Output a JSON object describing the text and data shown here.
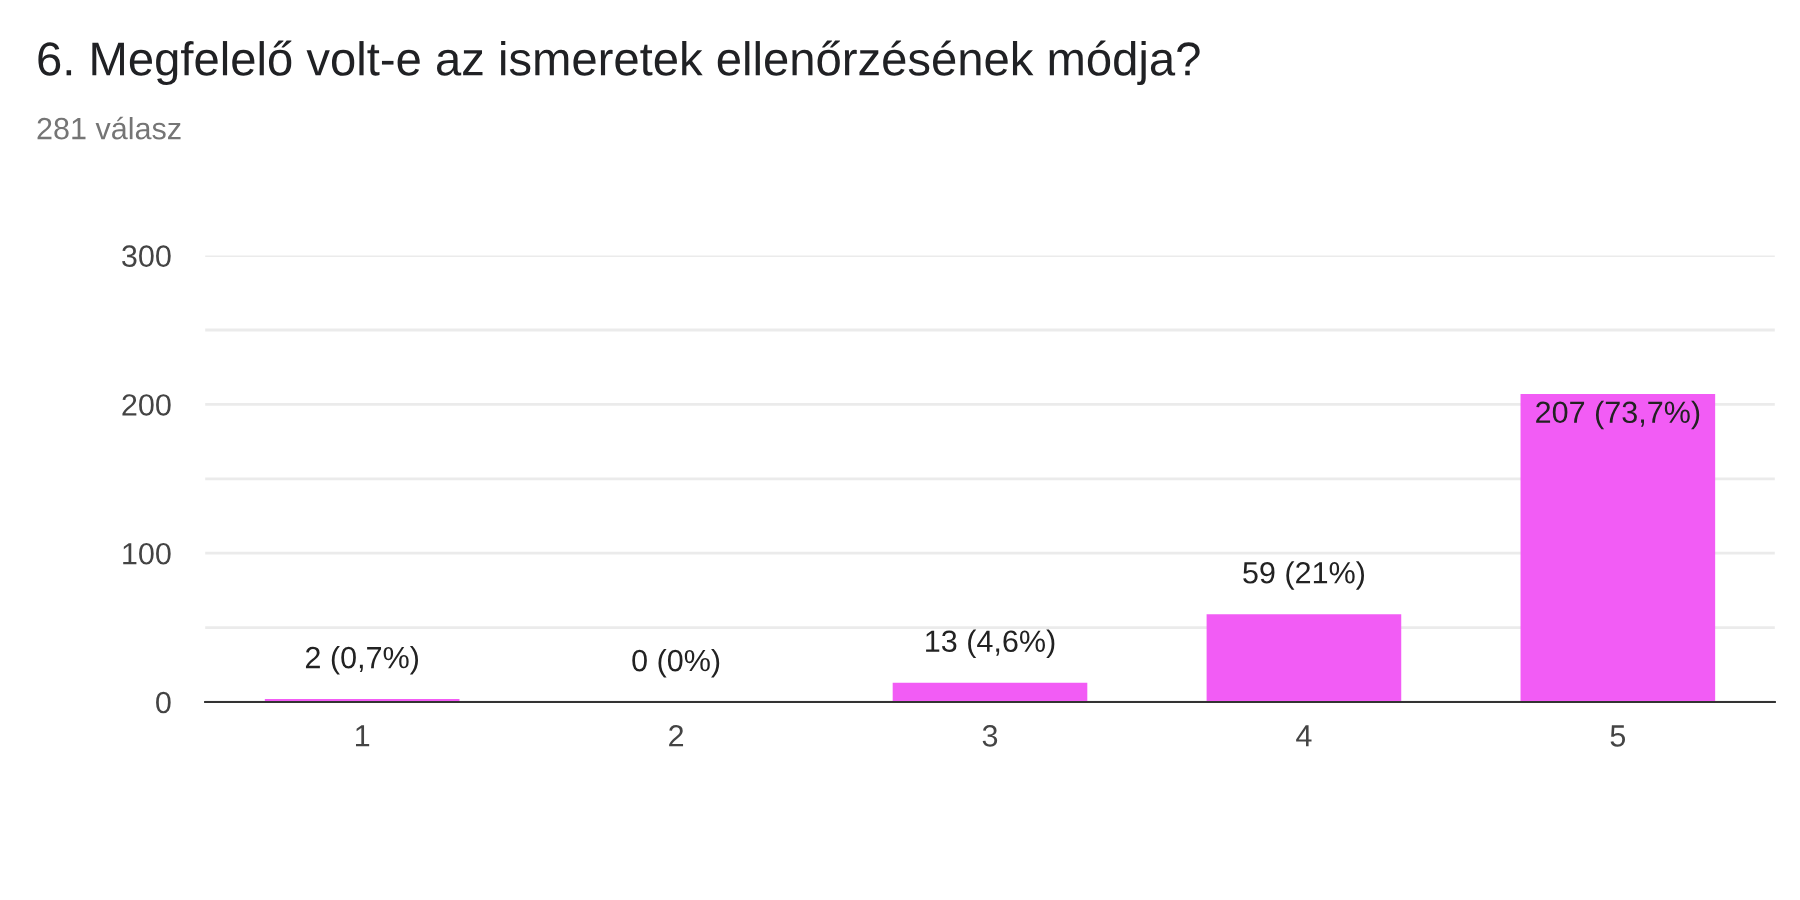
{
  "chart_data": {
    "type": "bar",
    "title": "6. Megfelelő volt-e az ismeretek ellenőrzésének módja?",
    "subtitle": "281 válasz",
    "categories": [
      "1",
      "2",
      "3",
      "4",
      "5"
    ],
    "values": [
      2,
      0,
      13,
      59,
      207
    ],
    "value_labels": [
      "2 (0,7%)",
      "0 (0%)",
      "13 (4,6%)",
      "59 (21%)",
      "207 (73,7%)"
    ],
    "color": "#f25cf5",
    "ylim": [
      0,
      300
    ],
    "yticks": [
      0,
      {
        "value": 50,
        "label": null
      },
      100,
      {
        "value": 150,
        "label": null
      },
      200,
      {
        "value": 250,
        "label": null
      },
      300
    ],
    "grid": "y"
  }
}
